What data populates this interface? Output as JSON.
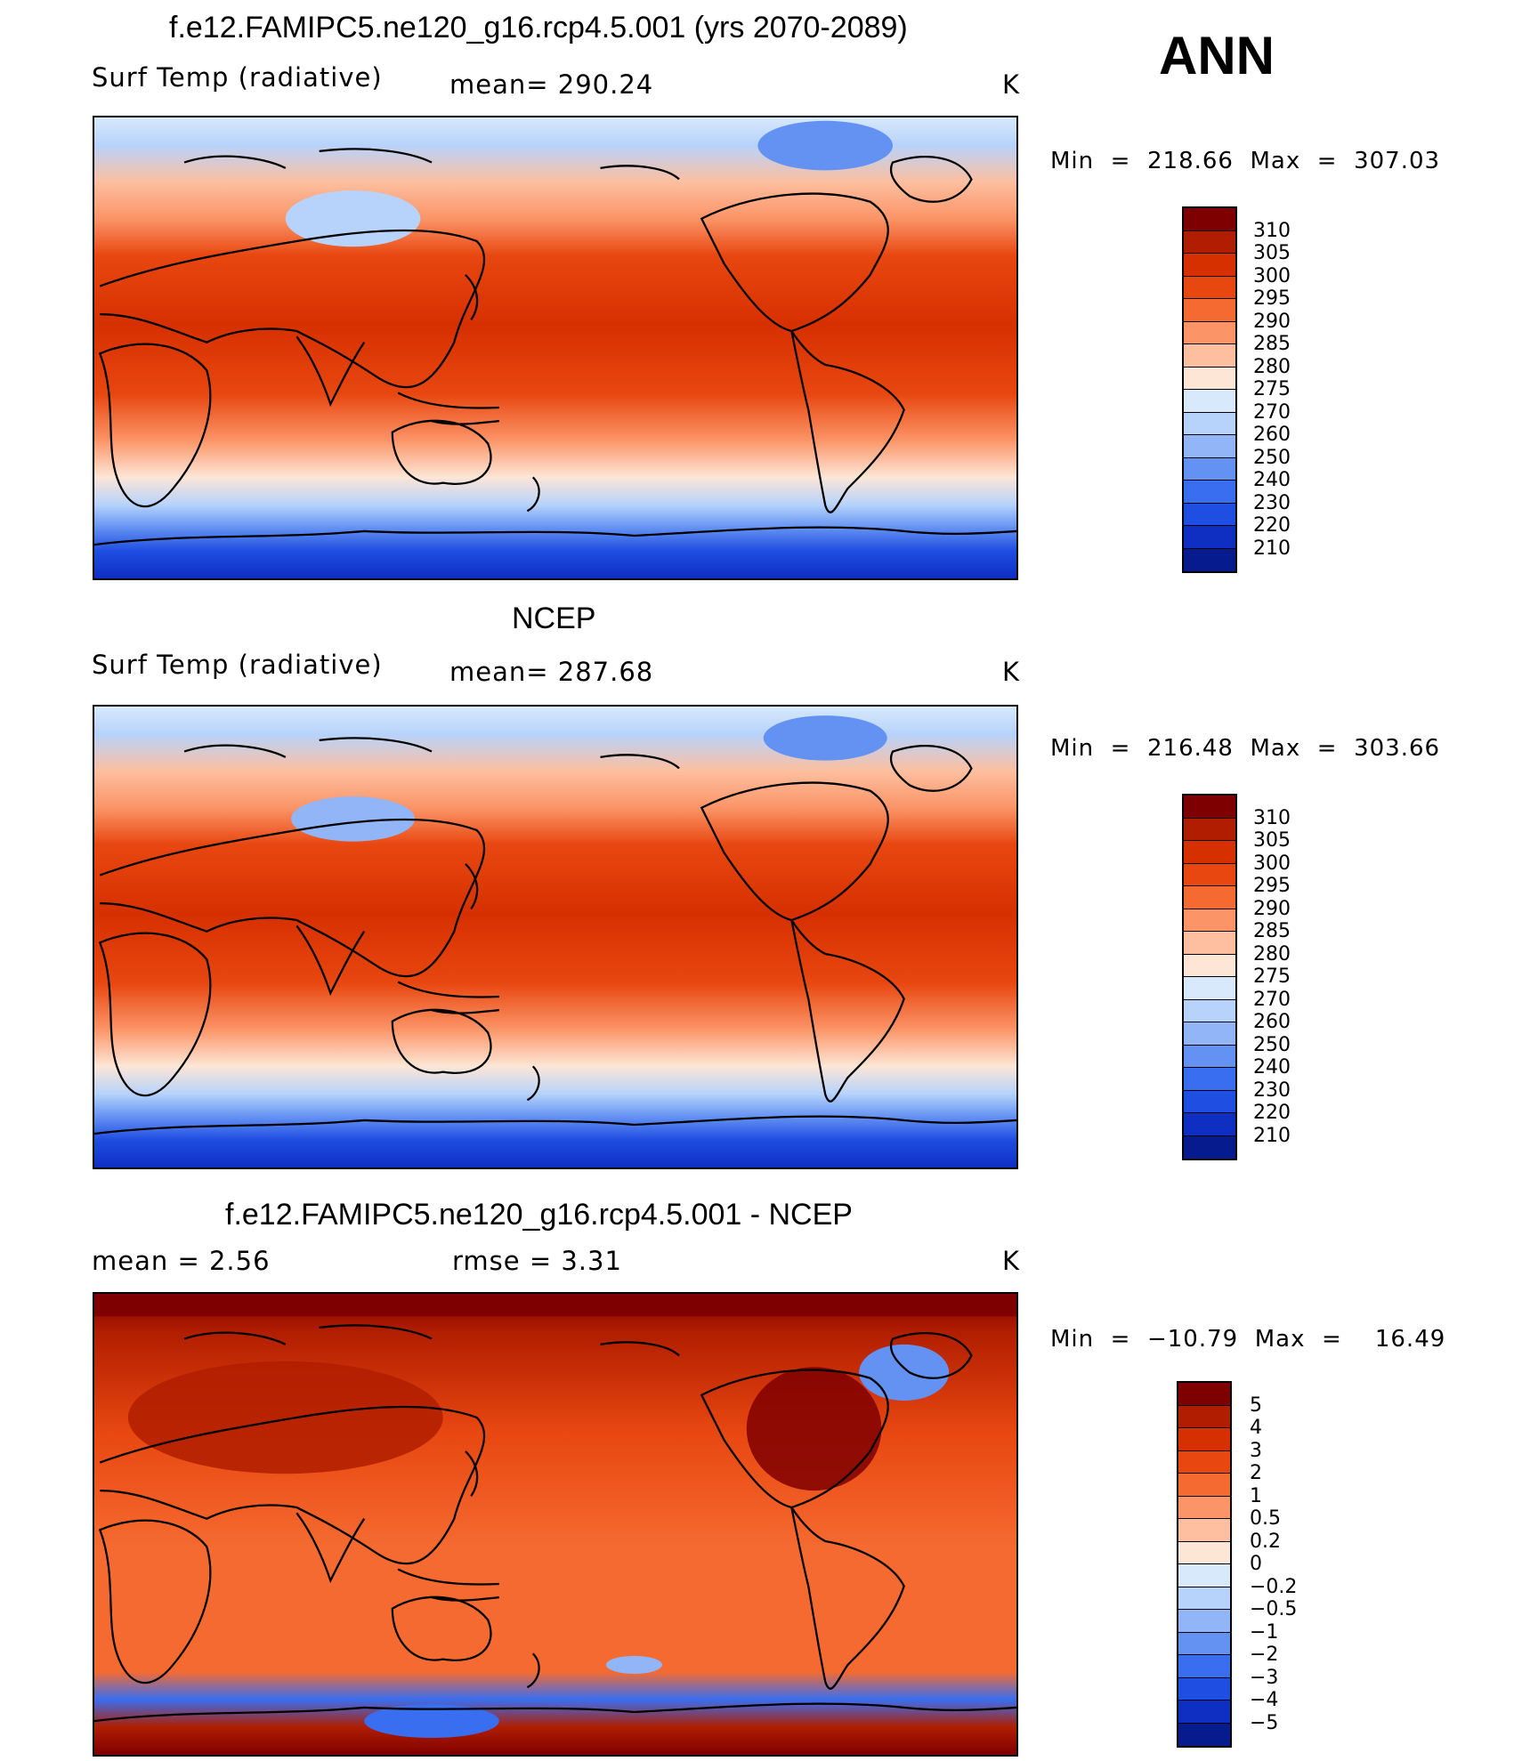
{
  "season": "ANN",
  "units": "K",
  "panels": [
    {
      "title": "f.e12.FAMIPC5.ne120_g16.rcp4.5.001 (yrs 2070-2089)",
      "left_label": "Surf Temp (radiative)",
      "center_label": "mean=  290.24",
      "minmax": "Min  =  218.66  Max  =  307.03",
      "map_type": "absolute"
    },
    {
      "title": "NCEP",
      "left_label": "Surf Temp (radiative)",
      "center_label": "mean=  287.68",
      "minmax": "Min  =  216.48  Max  =  303.66",
      "map_type": "absolute"
    },
    {
      "title": "f.e12.FAMIPC5.ne120_g16.rcp4.5.001 - NCEP",
      "left_label": "mean  =     2.56",
      "center_label": "rmse  =     3.31",
      "minmax": "Min  =  −10.79  Max  =    16.49",
      "map_type": "difference"
    }
  ],
  "colorbars": {
    "absolute": {
      "levels": [
        "310",
        "305",
        "300",
        "295",
        "290",
        "285",
        "280",
        "275",
        "270",
        "260",
        "250",
        "240",
        "230",
        "220",
        "210"
      ],
      "colors": [
        "#7f0000",
        "#b01d00",
        "#d63000",
        "#e84710",
        "#f56a30",
        "#fb9467",
        "#fdbfa0",
        "#fde6d6",
        "#d7e9fb",
        "#b7d3fb",
        "#92b5f8",
        "#6492f3",
        "#3a6ef1",
        "#1f4ee2",
        "#0f2fc2",
        "#061c8e"
      ]
    },
    "difference": {
      "levels": [
        "5",
        "4",
        "3",
        "2",
        "1",
        "0.5",
        "0.2",
        "0",
        "−0.2",
        "−0.5",
        "−1",
        "−2",
        "−3",
        "−4",
        "−5"
      ],
      "colors": [
        "#7f0000",
        "#b01d00",
        "#d63000",
        "#e84710",
        "#f56a30",
        "#fb9467",
        "#fdbfa0",
        "#fde6d6",
        "#d7e9fb",
        "#b7d3fb",
        "#92b5f8",
        "#6492f3",
        "#3a6ef1",
        "#1f4ee2",
        "#0f2fc2",
        "#061c8e"
      ]
    }
  }
}
